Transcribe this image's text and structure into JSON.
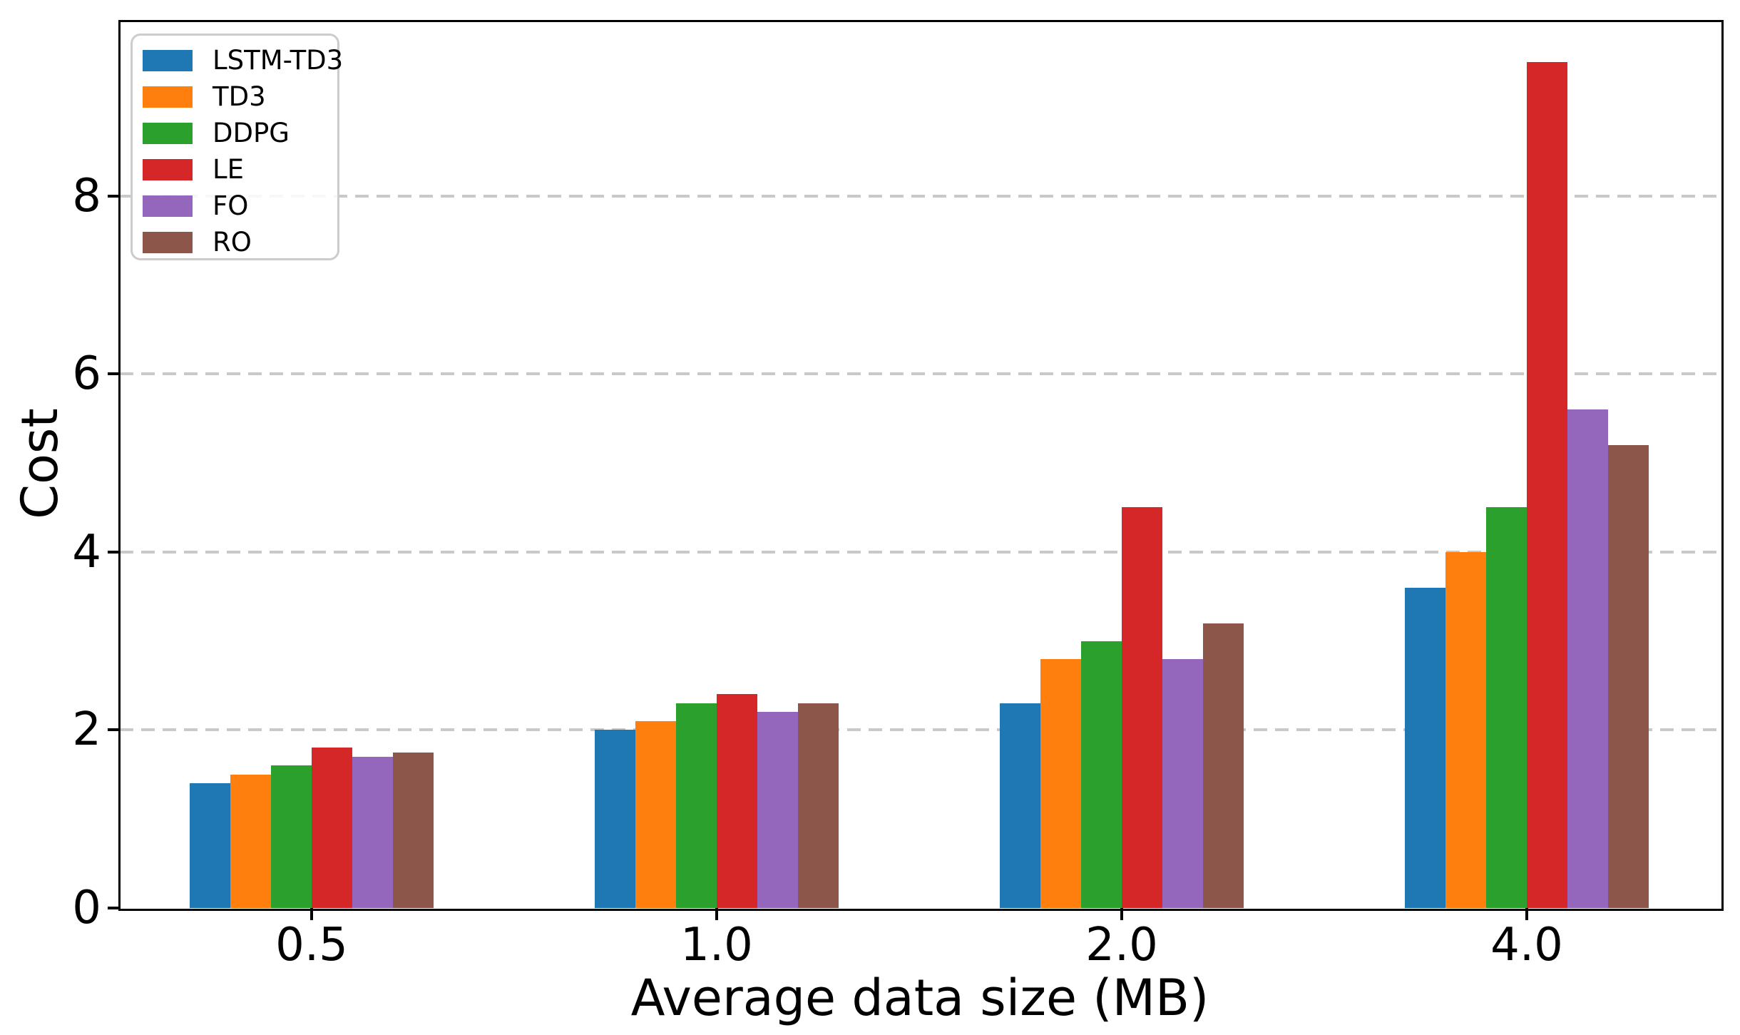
{
  "figure": {
    "background": "#ffffff",
    "spine_color": "#000000"
  },
  "chart_data": {
    "type": "bar",
    "title": "",
    "xlabel": "Average data size (MB)",
    "ylabel": "Cost",
    "categories": [
      "0.5",
      "1.0",
      "2.0",
      "4.0"
    ],
    "series": [
      {
        "name": "LSTM-TD3",
        "color": "#1f77b4",
        "values": [
          1.4,
          2.0,
          2.3,
          3.6
        ]
      },
      {
        "name": "TD3",
        "color": "#ff7f0e",
        "values": [
          1.5,
          2.1,
          2.8,
          4.0
        ]
      },
      {
        "name": "DDPG",
        "color": "#2ca02c",
        "values": [
          1.6,
          2.3,
          3.0,
          4.5
        ]
      },
      {
        "name": "LE",
        "color": "#d62728",
        "values": [
          1.8,
          2.4,
          4.5,
          9.5
        ]
      },
      {
        "name": "FO",
        "color": "#9467bd",
        "values": [
          1.7,
          2.2,
          2.8,
          5.6
        ]
      },
      {
        "name": "RO",
        "color": "#8c564b",
        "values": [
          1.75,
          2.3,
          3.2,
          5.2
        ]
      }
    ],
    "yticks": [
      0,
      2,
      4,
      6,
      8
    ],
    "ylim": [
      0,
      9.96
    ],
    "grid": {
      "axis": "y",
      "style": "dashed",
      "color": "#c9c9c9",
      "on": true
    },
    "legend": {
      "position": "upper-left",
      "labels": [
        "LSTM-TD3",
        "TD3",
        "DDPG",
        "LE",
        "FO",
        "RO"
      ]
    }
  }
}
